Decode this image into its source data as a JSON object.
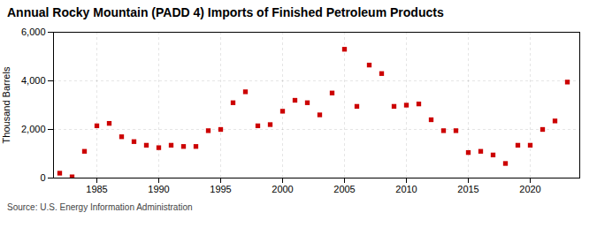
{
  "chart_data": {
    "type": "scatter",
    "title": "Annual Rocky Mountain (PADD 4) Imports of Finished Petroleum Products",
    "ylabel": "Thousand Barrels",
    "source": "Source: U.S. Energy Information Administration",
    "x": [
      1982,
      1983,
      1984,
      1985,
      1986,
      1987,
      1988,
      1989,
      1990,
      1991,
      1992,
      1993,
      1994,
      1995,
      1996,
      1997,
      1998,
      1999,
      2000,
      2001,
      2002,
      2003,
      2004,
      2005,
      2006,
      2007,
      2008,
      2009,
      2010,
      2011,
      2012,
      2013,
      2014,
      2015,
      2016,
      2017,
      2018,
      2019,
      2020,
      2021,
      2022,
      2023
    ],
    "values": [
      200,
      50,
      1100,
      2150,
      2250,
      1700,
      1500,
      1350,
      1250,
      1350,
      1300,
      1300,
      1950,
      2000,
      3100,
      3550,
      2150,
      2200,
      2750,
      3200,
      3100,
      2600,
      3500,
      5300,
      2950,
      4650,
      4300,
      2950,
      3000,
      3050,
      2400,
      1950,
      1950,
      1050,
      1100,
      950,
      600,
      1350,
      1350,
      2000,
      2350,
      3950
    ],
    "color": "#cc0000",
    "marker": "square",
    "xlim": [
      1981.5,
      2024
    ],
    "xticks": [
      1985,
      1990,
      1995,
      2000,
      2005,
      2010,
      2015,
      2020
    ],
    "ylim": [
      0,
      6000
    ],
    "yticks": [
      0,
      {
        "value": 2000,
        "label": "2,000"
      },
      {
        "value": 4000,
        "label": "4,000"
      },
      {
        "value": 6000,
        "label": "6,000"
      }
    ],
    "grid": true
  }
}
